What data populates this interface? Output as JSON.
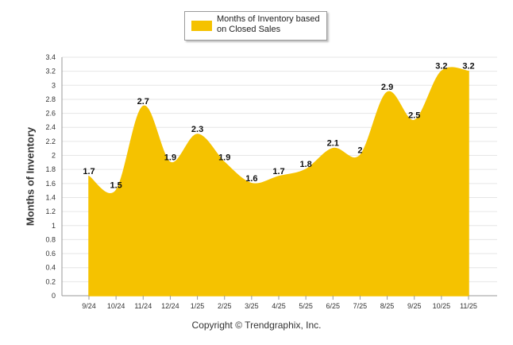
{
  "chart_data": {
    "type": "area",
    "legend": "Months of Inventory based on Closed Sales",
    "ylabel": "Months of Inventory",
    "xlabel": "",
    "ylim": [
      0,
      3.4
    ],
    "ytick_step": 0.2,
    "grid": true,
    "categories": [
      "9/24",
      "10/24",
      "11/24",
      "12/24",
      "1/25",
      "2/25",
      "3/25",
      "4/25",
      "5/25",
      "6/25",
      "7/25",
      "8/25",
      "9/25",
      "10/25",
      "11/25"
    ],
    "values": [
      1.7,
      1.5,
      2.7,
      1.9,
      2.3,
      1.9,
      1.6,
      1.7,
      1.8,
      2.1,
      2,
      2.9,
      2.5,
      3.2,
      3.2
    ],
    "color": "#f5c200"
  },
  "copyright": "Copyright © Trendgraphix, Inc."
}
